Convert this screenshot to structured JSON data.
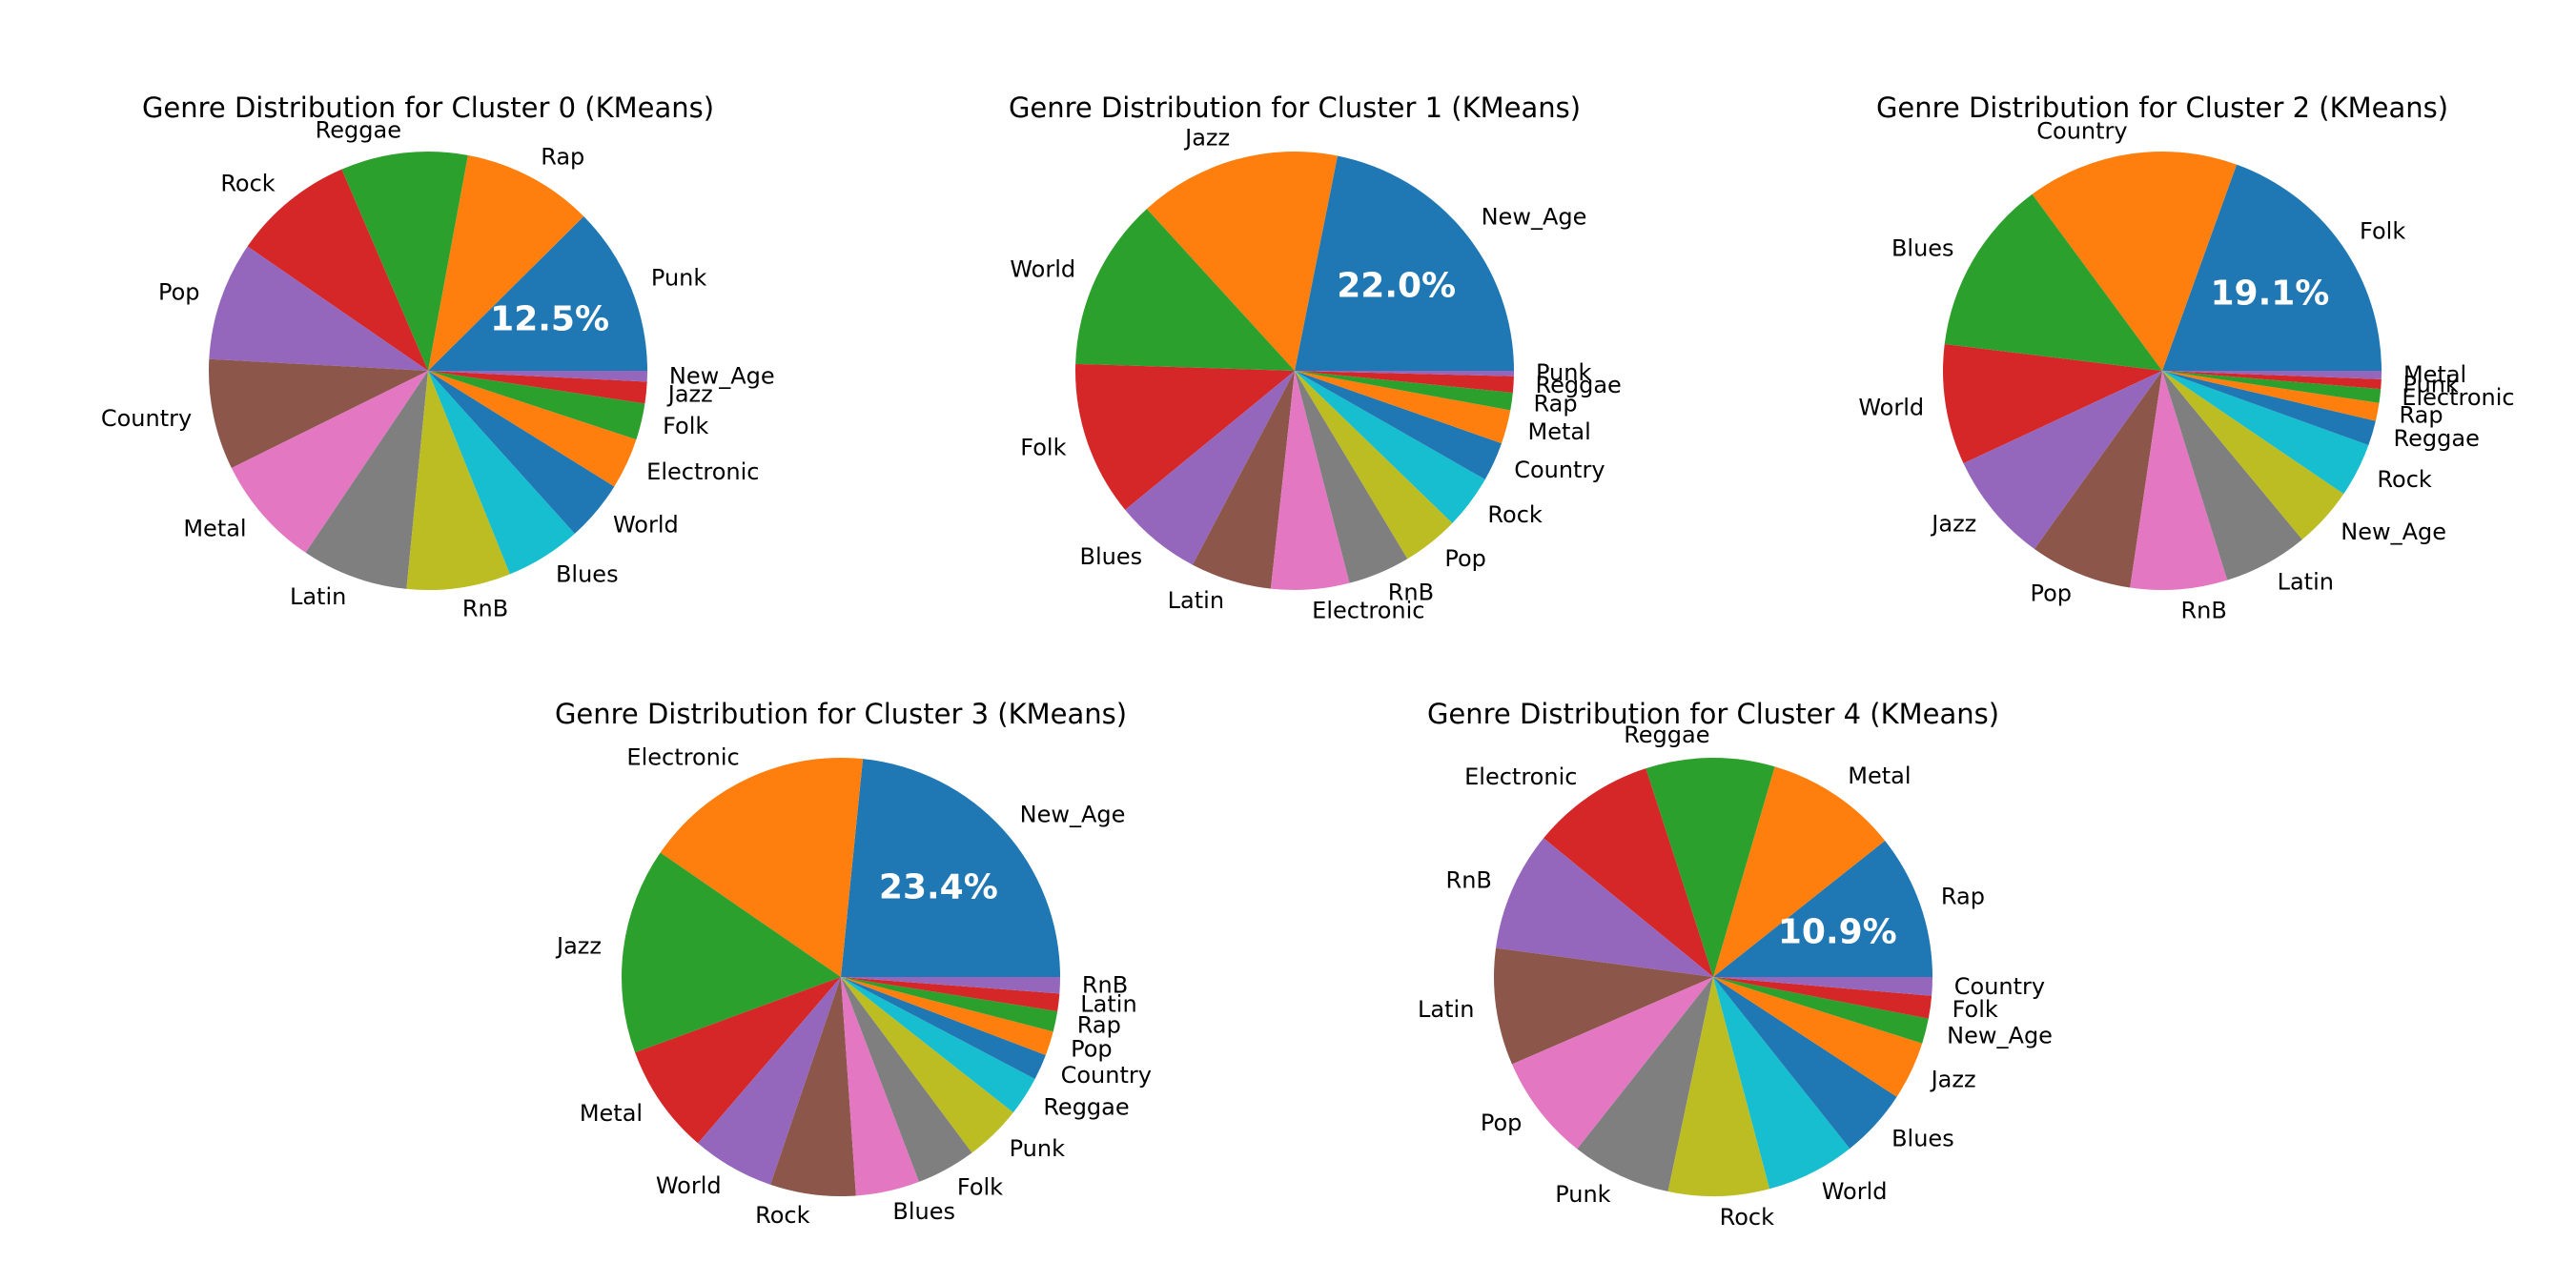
{
  "figure": {
    "background": "#ffffff"
  },
  "palette": [
    "#1f77b4",
    "#ff7f0e",
    "#2ca02c",
    "#d62728",
    "#9467bd",
    "#8c564b",
    "#e377c2",
    "#7f7f7f",
    "#bcbd22",
    "#17becf"
  ],
  "chart_data": [
    {
      "type": "pie",
      "title": "Genre Distribution for Cluster 0 (KMeans)",
      "start_angle_deg": 0,
      "direction": "counterclockwise",
      "slices": [
        {
          "label": "Punk",
          "value": 12.5,
          "pct_label": "12.5%"
        },
        {
          "label": "Rap",
          "value": 9.7
        },
        {
          "label": "Reggae",
          "value": 9.4
        },
        {
          "label": "Rock",
          "value": 9.0
        },
        {
          "label": "Pop",
          "value": 8.8
        },
        {
          "label": "Country",
          "value": 8.2
        },
        {
          "label": "Metal",
          "value": 8.3
        },
        {
          "label": "Latin",
          "value": 7.9
        },
        {
          "label": "RnB",
          "value": 7.7
        },
        {
          "label": "Blues",
          "value": 5.6
        },
        {
          "label": "World",
          "value": 4.5
        },
        {
          "label": "Electronic",
          "value": 3.8
        },
        {
          "label": "Folk",
          "value": 2.7
        },
        {
          "label": "Jazz",
          "value": 1.6
        },
        {
          "label": "New_Age",
          "value": 0.8
        }
      ]
    },
    {
      "type": "pie",
      "title": "Genre Distribution for Cluster 1 (KMeans)",
      "start_angle_deg": 0,
      "direction": "counterclockwise",
      "slices": [
        {
          "label": "New_Age",
          "value": 22.0,
          "pct_label": "22.0%"
        },
        {
          "label": "Jazz",
          "value": 15.0
        },
        {
          "label": "World",
          "value": 12.8
        },
        {
          "label": "Folk",
          "value": 11.5
        },
        {
          "label": "Blues",
          "value": 6.4
        },
        {
          "label": "Latin",
          "value": 6.0
        },
        {
          "label": "Electronic",
          "value": 5.8
        },
        {
          "label": "RnB",
          "value": 4.6
        },
        {
          "label": "Pop",
          "value": 4.2
        },
        {
          "label": "Rock",
          "value": 4.0
        },
        {
          "label": "Country",
          "value": 2.9
        },
        {
          "label": "Metal",
          "value": 2.5
        },
        {
          "label": "Rap",
          "value": 1.3
        },
        {
          "label": "Reggae",
          "value": 1.2
        },
        {
          "label": "Punk",
          "value": 0.4
        }
      ]
    },
    {
      "type": "pie",
      "title": "Genre Distribution for Cluster 2 (KMeans)",
      "start_angle_deg": 0,
      "direction": "counterclockwise",
      "slices": [
        {
          "label": "Folk",
          "value": 19.1,
          "pct_label": "19.1%"
        },
        {
          "label": "Country",
          "value": 15.3
        },
        {
          "label": "Blues",
          "value": 12.7
        },
        {
          "label": "World",
          "value": 8.7
        },
        {
          "label": "Jazz",
          "value": 8.0
        },
        {
          "label": "Pop",
          "value": 7.4
        },
        {
          "label": "RnB",
          "value": 7.0
        },
        {
          "label": "Latin",
          "value": 6.1
        },
        {
          "label": "New_Age",
          "value": 4.4
        },
        {
          "label": "Rock",
          "value": 3.9
        },
        {
          "label": "Reggae",
          "value": 1.8
        },
        {
          "label": "Rap",
          "value": 1.3
        },
        {
          "label": "Electronic",
          "value": 1.0
        },
        {
          "label": "Punk",
          "value": 0.7
        },
        {
          "label": "Metal",
          "value": 0.6
        }
      ]
    },
    {
      "type": "pie",
      "title": "Genre Distribution for Cluster 3 (KMeans)",
      "start_angle_deg": 0,
      "direction": "counterclockwise",
      "slices": [
        {
          "label": "New_Age",
          "value": 23.4,
          "pct_label": "23.4%"
        },
        {
          "label": "Electronic",
          "value": 17.0
        },
        {
          "label": "Jazz",
          "value": 15.2
        },
        {
          "label": "Metal",
          "value": 8.1
        },
        {
          "label": "World",
          "value": 6.1
        },
        {
          "label": "Rock",
          "value": 6.3
        },
        {
          "label": "Blues",
          "value": 4.7
        },
        {
          "label": "Folk",
          "value": 4.4
        },
        {
          "label": "Punk",
          "value": 4.2
        },
        {
          "label": "Reggae",
          "value": 2.9
        },
        {
          "label": "Country",
          "value": 1.9
        },
        {
          "label": "Pop",
          "value": 1.8
        },
        {
          "label": "Rap",
          "value": 1.5
        },
        {
          "label": "Latin",
          "value": 1.3
        },
        {
          "label": "RnB",
          "value": 1.2
        }
      ]
    },
    {
      "type": "pie",
      "title": "Genre Distribution for Cluster 4 (KMeans)",
      "start_angle_deg": 0,
      "direction": "counterclockwise",
      "slices": [
        {
          "label": "Rap",
          "value": 10.9,
          "pct_label": "10.9%"
        },
        {
          "label": "Metal",
          "value": 10.0
        },
        {
          "label": "Reggae",
          "value": 9.7
        },
        {
          "label": "Electronic",
          "value": 9.3
        },
        {
          "label": "RnB",
          "value": 9.0
        },
        {
          "label": "Latin",
          "value": 8.8
        },
        {
          "label": "Pop",
          "value": 8.0
        },
        {
          "label": "Punk",
          "value": 7.5
        },
        {
          "label": "Rock",
          "value": 7.6
        },
        {
          "label": "World",
          "value": 6.7
        },
        {
          "label": "Blues",
          "value": 5.2
        },
        {
          "label": "Jazz",
          "value": 4.4
        },
        {
          "label": "New_Age",
          "value": 1.9
        },
        {
          "label": "Folk",
          "value": 1.7
        },
        {
          "label": "Country",
          "value": 1.4
        }
      ]
    }
  ]
}
